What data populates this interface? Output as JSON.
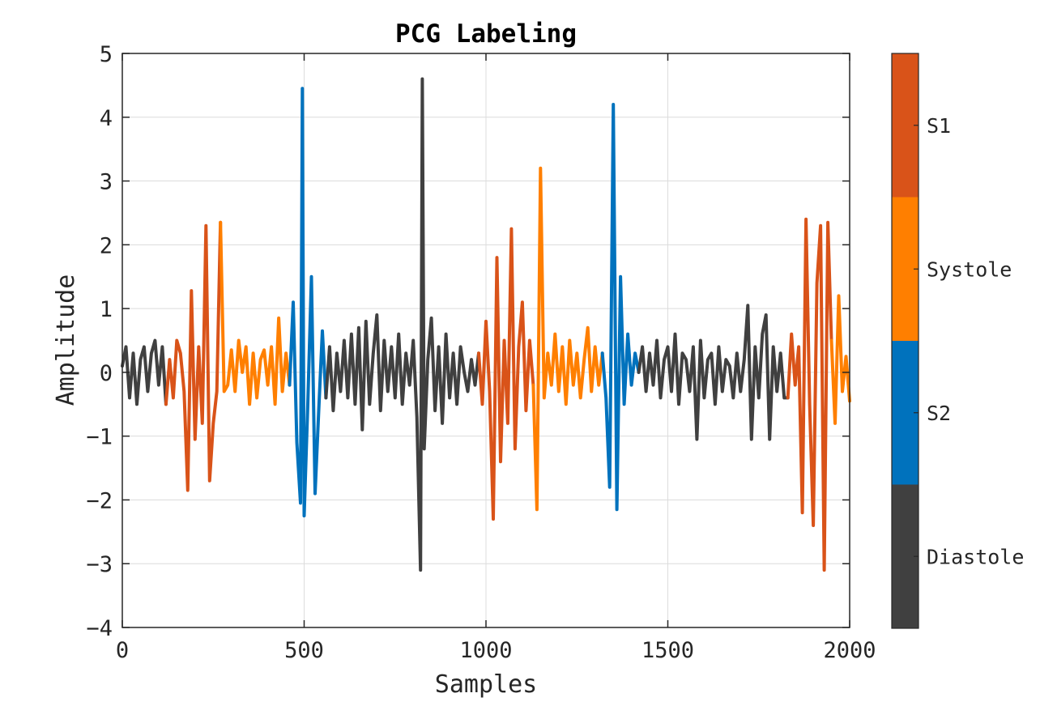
{
  "chart_data": {
    "type": "line",
    "title": "PCG Labeling",
    "xlabel": "Samples",
    "ylabel": "Amplitude",
    "xlim": [
      0,
      2000
    ],
    "ylim": [
      -4,
      5
    ],
    "xticks": [
      0,
      500,
      1000,
      1500,
      2000
    ],
    "xtick_labels": [
      "0",
      "500",
      "1000",
      "1500",
      "2000"
    ],
    "yticks": [
      -4,
      -3,
      -2,
      -1,
      0,
      1,
      2,
      3,
      4,
      5
    ],
    "ytick_labels": [
      "−4",
      "−3",
      "−2",
      "−1",
      "0",
      "1",
      "2",
      "3",
      "4",
      "5"
    ],
    "grid": true,
    "colorbar": {
      "placement": "right",
      "entries": [
        {
          "label": "S1",
          "color": "#D95319"
        },
        {
          "label": "Systole",
          "color": "#FF7F00"
        },
        {
          "label": "S2",
          "color": "#0072BD"
        },
        {
          "label": "Diastole",
          "color": "#404040"
        }
      ]
    },
    "series": [
      {
        "state": "Diastole",
        "color": "#404040",
        "x": [
          0,
          10,
          20,
          30,
          40,
          50,
          60,
          70,
          80,
          90,
          100,
          110,
          120
        ],
        "y": [
          0.1,
          0.4,
          -0.4,
          0.3,
          -0.5,
          0.2,
          0.4,
          -0.3,
          0.3,
          0.5,
          -0.2,
          0.4,
          -0.5
        ]
      },
      {
        "state": "S1",
        "color": "#D95319",
        "x": [
          120,
          130,
          140,
          150,
          160,
          170,
          180,
          190,
          200,
          210,
          220,
          230,
          240,
          250,
          260,
          270
        ],
        "y": [
          -0.5,
          0.2,
          -0.4,
          0.5,
          0.3,
          -0.3,
          -1.85,
          1.28,
          -1.05,
          0.4,
          -0.8,
          2.3,
          -1.7,
          -0.8,
          -0.3,
          2.35
        ]
      },
      {
        "state": "Systole",
        "color": "#FF7F00",
        "x": [
          270,
          280,
          290,
          300,
          310,
          320,
          330,
          340,
          350,
          360,
          370,
          380,
          390,
          400,
          410,
          420,
          430,
          440,
          450,
          460
        ],
        "y": [
          2.35,
          -0.3,
          -0.2,
          0.35,
          -0.3,
          0.5,
          0.0,
          0.4,
          -0.5,
          0.3,
          -0.4,
          0.2,
          0.35,
          -0.2,
          0.4,
          -0.5,
          0.85,
          -0.3,
          0.3,
          -0.2
        ]
      },
      {
        "state": "S2",
        "color": "#0072BD",
        "x": [
          460,
          470,
          480,
          490,
          495,
          500,
          510,
          520,
          530,
          540,
          550,
          560
        ],
        "y": [
          -0.2,
          1.1,
          -1.1,
          -2.05,
          4.45,
          -2.25,
          -0.5,
          1.5,
          -1.9,
          -0.6,
          0.65,
          -0.4
        ]
      },
      {
        "state": "Diastole",
        "color": "#404040",
        "x": [
          560,
          570,
          580,
          590,
          600,
          610,
          620,
          630,
          640,
          650,
          660,
          670,
          680,
          690,
          700,
          710,
          720,
          730,
          740,
          750,
          760,
          770,
          780,
          790,
          800,
          810,
          820,
          825,
          830,
          840,
          850,
          860,
          870,
          880,
          890,
          900,
          910,
          920,
          930,
          940,
          950,
          960,
          970,
          980
        ],
        "y": [
          -0.4,
          0.4,
          -0.6,
          0.3,
          -0.3,
          0.5,
          -0.4,
          0.6,
          -0.5,
          0.7,
          -0.9,
          0.8,
          -0.5,
          0.3,
          0.9,
          -0.6,
          0.5,
          -0.3,
          0.4,
          -0.4,
          0.6,
          -0.5,
          0.3,
          -0.2,
          0.5,
          -0.7,
          -3.1,
          4.6,
          -1.2,
          0.2,
          0.85,
          -0.6,
          0.4,
          -0.8,
          0.6,
          -0.4,
          0.3,
          -0.5,
          0.4,
          0.0,
          -0.3,
          0.2,
          -0.2,
          0.3
        ]
      },
      {
        "state": "S1",
        "color": "#D95319",
        "x": [
          980,
          990,
          1000,
          1010,
          1020,
          1030,
          1040,
          1050,
          1060,
          1070,
          1080,
          1090,
          1100,
          1110,
          1120,
          1130
        ],
        "y": [
          0.3,
          -0.5,
          0.8,
          -0.3,
          -2.3,
          1.8,
          -1.4,
          0.5,
          -0.8,
          2.25,
          -1.2,
          0.4,
          1.1,
          -0.6,
          0.5,
          -0.2
        ]
      },
      {
        "state": "Systole",
        "color": "#FF7F00",
        "x": [
          1130,
          1140,
          1150,
          1160,
          1170,
          1180,
          1190,
          1200,
          1210,
          1220,
          1230,
          1240,
          1250,
          1260,
          1270,
          1280,
          1290,
          1300,
          1310,
          1320
        ],
        "y": [
          -0.2,
          -2.15,
          3.2,
          -0.4,
          0.3,
          -0.2,
          0.6,
          -0.3,
          0.4,
          -0.5,
          0.5,
          -0.2,
          0.3,
          -0.4,
          0.2,
          0.7,
          -0.3,
          0.4,
          -0.2,
          0.3
        ]
      },
      {
        "state": "S2",
        "color": "#0072BD",
        "x": [
          1320,
          1330,
          1340,
          1350,
          1360,
          1370,
          1380,
          1390,
          1400,
          1410,
          1420
        ],
        "y": [
          0.3,
          -0.4,
          -1.8,
          4.2,
          -2.15,
          1.5,
          -0.5,
          0.6,
          -0.2,
          0.3,
          0.0
        ]
      },
      {
        "state": "Diastole",
        "color": "#404040",
        "x": [
          1420,
          1430,
          1440,
          1450,
          1460,
          1470,
          1480,
          1490,
          1500,
          1510,
          1520,
          1530,
          1540,
          1550,
          1560,
          1570,
          1580,
          1590,
          1600,
          1610,
          1620,
          1630,
          1640,
          1650,
          1660,
          1670,
          1680,
          1690,
          1700,
          1710,
          1720,
          1730,
          1740,
          1750,
          1760,
          1770,
          1780,
          1790,
          1800,
          1810,
          1820,
          1830
        ],
        "y": [
          0.0,
          0.4,
          -0.3,
          0.3,
          -0.2,
          0.5,
          -0.4,
          0.2,
          0.4,
          -0.3,
          0.6,
          -0.5,
          0.3,
          0.2,
          -0.3,
          0.4,
          -1.05,
          0.5,
          -0.4,
          0.2,
          0.3,
          -0.5,
          0.4,
          -0.3,
          0.2,
          0.1,
          -0.4,
          0.3,
          -0.3,
          0.2,
          1.05,
          -1.05,
          0.4,
          -0.4,
          0.6,
          0.9,
          -1.05,
          0.4,
          -0.3,
          0.3,
          -0.4,
          -0.4
        ]
      },
      {
        "state": "S1",
        "color": "#D95319",
        "x": [
          1830,
          1840,
          1850,
          1860,
          1870,
          1880,
          1890,
          1900,
          1910,
          1920,
          1930,
          1940,
          1950
        ],
        "y": [
          -0.4,
          0.6,
          -0.2,
          0.4,
          -2.2,
          2.4,
          -0.5,
          -2.4,
          1.4,
          2.3,
          -3.1,
          2.35,
          0.5
        ]
      },
      {
        "state": "Systole",
        "color": "#FF7F00",
        "x": [
          1950,
          1960,
          1970,
          1980,
          1990,
          2000
        ],
        "y": [
          0.5,
          -0.8,
          1.2,
          -0.3,
          0.25,
          -0.45
        ]
      }
    ]
  }
}
